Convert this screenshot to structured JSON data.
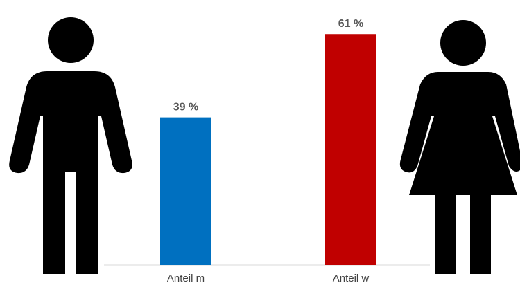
{
  "chart_data": {
    "type": "bar",
    "categories": [
      "Anteil m",
      "Anteil w"
    ],
    "values": [
      39,
      61
    ],
    "value_labels": [
      "39 %",
      "61 %"
    ],
    "colors": [
      "#0070C0",
      "#C00000"
    ],
    "ylim": [
      0,
      70
    ],
    "grid": false,
    "title": "",
    "xlabel": "",
    "ylabel": ""
  },
  "icons": {
    "left": "male-figure-icon",
    "right": "female-figure-icon",
    "icon_color": "#000000"
  }
}
